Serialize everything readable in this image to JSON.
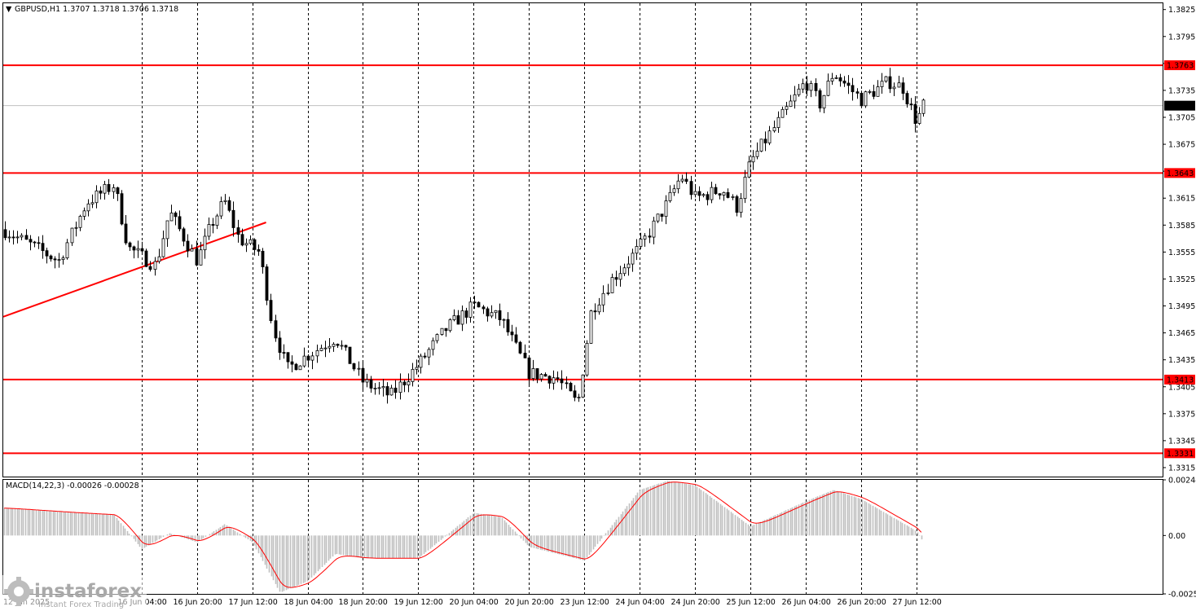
{
  "header": {
    "symbol_line": "GBPUSD,H1  1.3707 1.3718 1.3706 1.3718",
    "macd_line": "MACD(14,22,3) -0.00026 -0.00028"
  },
  "watermark": {
    "brand": "instaforex",
    "tagline": "Instant Forex Trading"
  },
  "colors": {
    "level_line": "#ff0000",
    "candle": "#000000",
    "grid": "#000000",
    "macd_hist": "#c0c0c0",
    "macd_signal": "#ff0000"
  },
  "chart_data": [
    {
      "type": "candlestick",
      "symbol": "GBPUSD",
      "timeframe": "H1",
      "ohlc_last": {
        "open": 1.3707,
        "high": 1.3718,
        "low": 1.3706,
        "close": 1.3718
      },
      "ylim": [
        1.3305,
        1.3832
      ],
      "y_ticks": [
        "1.3825",
        "1.3795",
        "1.3765",
        "1.3735",
        "1.3705",
        "1.3675",
        "1.3645",
        "1.3615",
        "1.3585",
        "1.3555",
        "1.3525",
        "1.3495",
        "1.3465",
        "1.3435",
        "1.3405",
        "1.3375",
        "1.3345",
        "1.3315"
      ],
      "x_ticks": [
        "12 Jun 2025",
        "16 Jun 04:00",
        "16 Jun 20:00",
        "17 Jun 12:00",
        "18 Jun 04:00",
        "18 Jun 20:00",
        "19 Jun 12:00",
        "20 Jun 04:00",
        "20 Jun 20:00",
        "23 Jun 12:00",
        "24 Jun 04:00",
        "24 Jun 20:00",
        "25 Jun 12:00",
        "26 Jun 04:00",
        "26 Jun 20:00",
        "27 Jun 12:00"
      ],
      "levels": [
        {
          "value": 1.3763,
          "label": "1.3763"
        },
        {
          "value": 1.3643,
          "label": "1.3643"
        },
        {
          "value": 1.3413,
          "label": "1.3413"
        },
        {
          "value": 1.3331,
          "label": "1.3331"
        }
      ],
      "current_price": {
        "value": 1.3718,
        "label": "1.3718"
      },
      "trendline": {
        "from": {
          "x": "12 Jun 2025",
          "y": 1.3483
        },
        "to": {
          "x": "17 Jun 16:00",
          "y": 1.3588
        }
      },
      "close_path": [
        [
          "12 Jun 2025",
          1.358
        ],
        [
          "13 Jun 04:00",
          1.3545
        ],
        [
          "13 Jun 12:00",
          1.361
        ],
        [
          "13 Jun 20:00",
          1.363
        ],
        [
          "16 Jun 00:00",
          1.356
        ],
        [
          "16 Jun 08:00",
          1.354
        ],
        [
          "16 Jun 12:00",
          1.36
        ],
        [
          "16 Jun 20:00",
          1.3545
        ],
        [
          "17 Jun 00:00",
          1.3585
        ],
        [
          "17 Jun 04:00",
          1.3612
        ],
        [
          "17 Jun 08:00",
          1.357
        ],
        [
          "17 Jun 14:00",
          1.3555
        ],
        [
          "17 Jun 18:00",
          1.347
        ],
        [
          "17 Jun 22:00",
          1.3425
        ],
        [
          "18 Jun 04:00",
          1.344
        ],
        [
          "18 Jun 12:00",
          1.346
        ],
        [
          "18 Jun 20:00",
          1.341
        ],
        [
          "19 Jun 04:00",
          1.3395
        ],
        [
          "19 Jun 12:00",
          1.343
        ],
        [
          "19 Jun 20:00",
          1.347
        ],
        [
          "20 Jun 04:00",
          1.3495
        ],
        [
          "20 Jun 12:00",
          1.348
        ],
        [
          "20 Jun 20:00",
          1.342
        ],
        [
          "23 Jun 04:00",
          1.3415
        ],
        [
          "23 Jun 10:00",
          1.3385
        ],
        [
          "23 Jun 14:00",
          1.349
        ],
        [
          "23 Jun 20:00",
          1.3525
        ],
        [
          "24 Jun 04:00",
          1.356
        ],
        [
          "24 Jun 12:00",
          1.361
        ],
        [
          "24 Jun 16:00",
          1.364
        ],
        [
          "24 Jun 20:00",
          1.3615
        ],
        [
          "25 Jun 04:00",
          1.3625
        ],
        [
          "25 Jun 08:00",
          1.3605
        ],
        [
          "25 Jun 12:00",
          1.3655
        ],
        [
          "25 Jun 20:00",
          1.37
        ],
        [
          "26 Jun 04:00",
          1.3745
        ],
        [
          "26 Jun 08:00",
          1.372
        ],
        [
          "26 Jun 12:00",
          1.3755
        ],
        [
          "26 Jun 20:00",
          1.3725
        ],
        [
          "27 Jun 04:00",
          1.3745
        ],
        [
          "27 Jun 08:00",
          1.3738
        ],
        [
          "27 Jun 12:00",
          1.37
        ],
        [
          "27 Jun 14:00",
          1.3718
        ]
      ]
    },
    {
      "type": "area",
      "name": "MACD(14,22,3)",
      "values_shown": {
        "main": -0.00026,
        "signal": -0.00028
      },
      "ylim": [
        -0.00256,
        0.00244
      ],
      "y_ticks": [
        "0.00244",
        "0.00",
        "-0.00256"
      ],
      "histogram_path": [
        [
          "12 Jun 2025",
          0.0012
        ],
        [
          "13 Jun 08:00",
          0.001
        ],
        [
          "13 Jun 20:00",
          0.0009
        ],
        [
          "16 Jun 04:00",
          -0.0006
        ],
        [
          "16 Jun 12:00",
          0.0001
        ],
        [
          "16 Jun 20:00",
          -0.0003
        ],
        [
          "17 Jun 04:00",
          0.0005
        ],
        [
          "17 Jun 12:00",
          -0.0003
        ],
        [
          "17 Jun 20:00",
          -0.0025
        ],
        [
          "18 Jun 04:00",
          -0.002
        ],
        [
          "18 Jun 12:00",
          -0.0008
        ],
        [
          "18 Jun 20:00",
          -0.001
        ],
        [
          "19 Jun 12:00",
          -0.001
        ],
        [
          "20 Jun 04:00",
          0.001
        ],
        [
          "20 Jun 12:00",
          0.0008
        ],
        [
          "20 Jun 20:00",
          -0.0005
        ],
        [
          "23 Jun 12:00",
          -0.0011
        ],
        [
          "24 Jun 04:00",
          0.002
        ],
        [
          "24 Jun 12:00",
          0.0024
        ],
        [
          "24 Jun 20:00",
          0.0022
        ],
        [
          "25 Jun 12:00",
          0.0004
        ],
        [
          "26 Jun 04:00",
          0.0015
        ],
        [
          "26 Jun 12:00",
          0.002
        ],
        [
          "26 Jun 20:00",
          0.0016
        ],
        [
          "27 Jun 04:00",
          0.0009
        ],
        [
          "27 Jun 12:00",
          0.0002
        ],
        [
          "27 Jun 14:00",
          -0.0003
        ]
      ],
      "signal_color": "#ff0000",
      "histogram_color": "#c0c0c0"
    }
  ]
}
